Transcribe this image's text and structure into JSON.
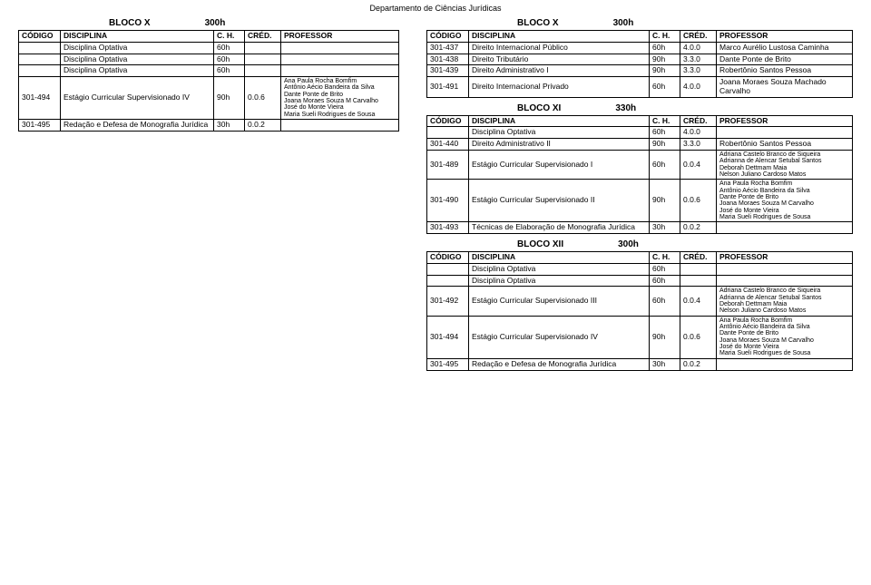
{
  "dept_title": "Departamento de Ciências Jurídicas",
  "headers": {
    "codigo": "CÓDIGO",
    "disciplina": "DISCIPLINA",
    "ch": "C. H.",
    "cred": "CRÉD.",
    "professor": "PROFESSOR"
  },
  "left": {
    "block_title": "BLOCO X",
    "block_hours": "300h",
    "rows": [
      {
        "codigo": "",
        "disc": "Disciplina Optativa",
        "ch": "60h",
        "cred": "",
        "prof": ""
      },
      {
        "codigo": "",
        "disc": "Disciplina Optativa",
        "ch": "60h",
        "cred": "",
        "prof": ""
      },
      {
        "codigo": "",
        "disc": "Disciplina Optativa",
        "ch": "60h",
        "cred": "",
        "prof": ""
      },
      {
        "codigo": "301-494",
        "disc": "Estágio Curricular Supervisionado IV",
        "ch": "90h",
        "cred": "0.0.6",
        "prof": "Ana Paula Rocha Bomfim\nAntônio Aécio Bandeira da Silva\nDante Ponte de Brito\nJoana Moraes Souza M Carvalho\nJosé do Monte Vieira\nMaria Sueli Rodrigues de Sousa",
        "prof_small": true
      },
      {
        "codigo": "301-495",
        "disc": "Redação e Defesa de Monografia Jurídica",
        "ch": "30h",
        "cred": "0.0.2",
        "prof": ""
      }
    ]
  },
  "right_x": {
    "block_title": "BLOCO X",
    "block_hours": "300h",
    "rows": [
      {
        "codigo": "301-437",
        "disc": "Direito Internacional Público",
        "ch": "60h",
        "cred": "4.0.0",
        "prof": "Marco Aurélio Lustosa Caminha"
      },
      {
        "codigo": "301-438",
        "disc": "Direito Tributário",
        "ch": "90h",
        "cred": "3.3.0",
        "prof": "Dante Ponte de Brito"
      },
      {
        "codigo": "301-439",
        "disc": "Direito Administrativo I",
        "ch": "90h",
        "cred": "3.3.0",
        "prof": "Robertônio Santos Pessoa"
      },
      {
        "codigo": "301-491",
        "disc": "Direito Internacional Privado",
        "ch": "60h",
        "cred": "4.0.0",
        "prof": "Joana Moraes Souza Machado Carvalho"
      }
    ]
  },
  "right_xi": {
    "block_title": "BLOCO XI",
    "block_hours": "330h",
    "rows": [
      {
        "codigo": "",
        "disc": "Disciplina Optativa",
        "ch": "60h",
        "cred": "4.0.0",
        "prof": ""
      },
      {
        "codigo": "301-440",
        "disc": "Direito Administrativo II",
        "ch": "90h",
        "cred": "3.3.0",
        "prof": "Robertônio Santos Pessoa"
      },
      {
        "codigo": "301-489",
        "disc": "Estágio Curricular Supervisionado I",
        "ch": "60h",
        "cred": "0.0.4",
        "prof": "Adriana Castelo Branco de Siqueira\nAdrianna de Alencar Setubal Santos\nDeborah Dettmam Maia\nNelson Juliano Cardoso Matos",
        "prof_small": true
      },
      {
        "codigo": "301-490",
        "disc": "Estágio Curricular Supervisionado II",
        "ch": "90h",
        "cred": "0.0.6",
        "prof": "Ana Paula Rocha Bomfim\nAntônio Aécio Bandeira da Silva\nDante Ponte de Brito\nJoana Moraes Souza M Carvalho\nJosé do Monte Vieira\nMaria Sueli Rodrigues de Sousa",
        "prof_small": true
      },
      {
        "codigo": "301-493",
        "disc": "Técnicas de Elaboração de Monografia Jurídica",
        "ch": "30h",
        "cred": "0.0.2",
        "prof": ""
      }
    ]
  },
  "right_xii": {
    "block_title": "BLOCO XII",
    "block_hours": "300h",
    "rows": [
      {
        "codigo": "",
        "disc": "Disciplina Optativa",
        "ch": "60h",
        "cred": "",
        "prof": ""
      },
      {
        "codigo": "",
        "disc": "Disciplina Optativa",
        "ch": "60h",
        "cred": "",
        "prof": ""
      },
      {
        "codigo": "301-492",
        "disc": "Estágio Curricular Supervisionado III",
        "ch": "60h",
        "cred": "0.0.4",
        "prof": "Adriana Castelo Branco de Siqueira\nAdrianna de Alencar Setubal Santos\nDeborah Dettmam Maia\nNelson Juliano Cardoso Matos",
        "prof_small": true
      },
      {
        "codigo": "301-494",
        "disc": "Estágio Curricular Supervisionado IV",
        "ch": "90h",
        "cred": "0.0.6",
        "prof": "Ana Paula Rocha Bomfim\nAntônio Aécio Bandeira da Silva\nDante Ponte de Brito\nJoana Moraes Souza M Carvalho\nJosé do Monte Vieira\nMaria Sueli Rodrigues de Sousa",
        "prof_small": true
      },
      {
        "codigo": "301-495",
        "disc": "Redação e Defesa de Monografia Jurídica",
        "ch": "30h",
        "cred": "0.0.2",
        "prof": ""
      }
    ]
  }
}
